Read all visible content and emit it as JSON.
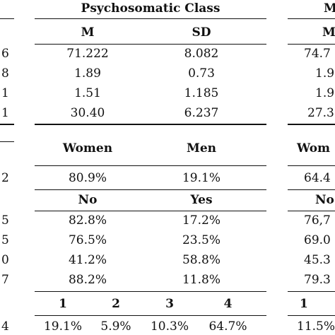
{
  "table": {
    "groups": [
      {
        "label": "Psychosomatic Class"
      },
      {
        "label": "M"
      }
    ],
    "stats_header": {
      "m": "M",
      "sd": "SD",
      "m2": "M"
    },
    "left_cut": [
      "6",
      "8",
      "1",
      "1"
    ],
    "stats_rows": [
      {
        "m": "71.222",
        "sd": "8.082",
        "m2": "74.7"
      },
      {
        "m": "1.89",
        "sd": "0.73",
        "m2": "1.9"
      },
      {
        "m": "1.51",
        "sd": "1.185",
        "m2": "1.9"
      },
      {
        "m": "30.40",
        "sd": "6.237",
        "m2": "27.3"
      }
    ],
    "gender_header": {
      "women": "Women",
      "men": "Men",
      "women2": "Wom"
    },
    "gender_row": {
      "left": "2",
      "women": "80.9%",
      "men": "19.1%",
      "women2": "64.4"
    },
    "yesno_header": {
      "no": "No",
      "yes": "Yes",
      "no2": "No"
    },
    "yesno_rows": [
      {
        "left": "5",
        "no": "82.8%",
        "yes": "17.2%",
        "no2": "76,7"
      },
      {
        "left": "5",
        "no": "76.5%",
        "yes": "23.5%",
        "no2": "69.0"
      },
      {
        "left": "0",
        "no": "41.2%",
        "yes": "58.8%",
        "no2": "45.3"
      },
      {
        "left": "7",
        "no": "88.2%",
        "yes": "11.8%",
        "no2": "79.3"
      }
    ],
    "cat_header": {
      "c1": "1",
      "c2": "2",
      "c3": "3",
      "c4": "4",
      "c1b": "1"
    },
    "cat_row": {
      "left": "4",
      "c1": "19.1%",
      "c2": "5.9%",
      "c3": "10.3%",
      "c4": "64.7%",
      "c1b": "11.5%"
    }
  }
}
